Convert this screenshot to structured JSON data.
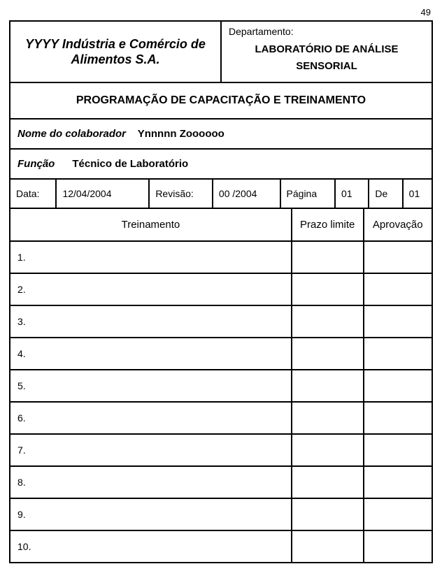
{
  "page_corner": "49",
  "header": {
    "company": "YYYY  Indústria e Comércio de Alimentos S.A.",
    "dept_label": "Departamento:",
    "dept_value_line1": "LABORATÓRIO DE  ANÁLISE",
    "dept_value_line2": "SENSORIAL"
  },
  "title": "PROGRAMAÇÃO  DE CAPACITAÇÃO E TREINAMENTO",
  "colaborador": {
    "label": "Nome do colaborador",
    "value": "Ynnnnn Zoooooo"
  },
  "funcao": {
    "label": "Função",
    "value": "Técnico de Laboratório"
  },
  "meta": {
    "data_label": "Data:",
    "data_value": "12/04/2004",
    "revisao_label": "Revisão:",
    "revisao_value": "00 /2004",
    "pagina_label": "Página",
    "pagina_value": "01",
    "de_label": "De",
    "de_value": "01"
  },
  "columns": {
    "treinamento": "Treinamento",
    "prazo": "Prazo limite",
    "aprov": "Aprovação"
  },
  "rows": [
    {
      "n": "1.",
      "treinamento": "",
      "prazo": "",
      "aprov": ""
    },
    {
      "n": "2.",
      "treinamento": "",
      "prazo": "",
      "aprov": ""
    },
    {
      "n": "3.",
      "treinamento": "",
      "prazo": "",
      "aprov": ""
    },
    {
      "n": "4.",
      "treinamento": "",
      "prazo": "",
      "aprov": ""
    },
    {
      "n": "5.",
      "treinamento": "",
      "prazo": "",
      "aprov": ""
    },
    {
      "n": "6.",
      "treinamento": "",
      "prazo": "",
      "aprov": ""
    },
    {
      "n": "7.",
      "treinamento": "",
      "prazo": "",
      "aprov": ""
    },
    {
      "n": "8.",
      "treinamento": "",
      "prazo": "",
      "aprov": ""
    },
    {
      "n": "9.",
      "treinamento": "",
      "prazo": "",
      "aprov": ""
    },
    {
      "n": "10.",
      "treinamento": "",
      "prazo": "",
      "aprov": ""
    }
  ]
}
